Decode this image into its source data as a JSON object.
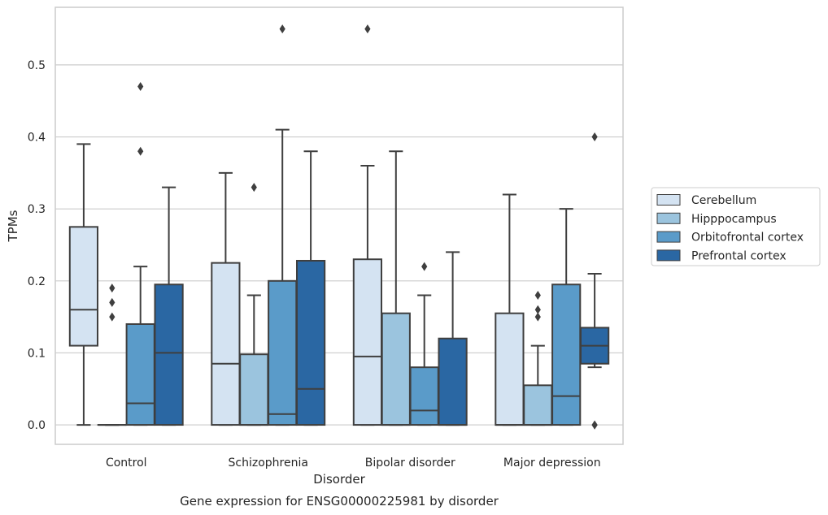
{
  "chart_data": {
    "type": "boxplot",
    "caption": "Gene expression for ENSG00000225981 by disorder",
    "xlabel": "Disorder",
    "ylabel": "TPMs",
    "ylim": [
      -0.027,
      0.58
    ],
    "yticks": [
      0.0,
      0.1,
      0.2,
      0.3,
      0.4,
      0.5
    ],
    "ytick_labels": [
      "0.0",
      "0.1",
      "0.2",
      "0.3",
      "0.4",
      "0.5"
    ],
    "grid": true,
    "legend_position": "right",
    "categories": [
      "Control",
      "Schizophrenia",
      "Bipolar disorder",
      "Major depression"
    ],
    "series": [
      {
        "name": "Cerebellum",
        "color": "#d4e3f2",
        "boxes": [
          {
            "whislo": 0.0,
            "q1": 0.11,
            "med": 0.16,
            "q3": 0.275,
            "whishi": 0.39,
            "fliers": []
          },
          {
            "whislo": 0.0,
            "q1": 0.0,
            "med": 0.085,
            "q3": 0.225,
            "whishi": 0.35,
            "fliers": []
          },
          {
            "whislo": 0.0,
            "q1": 0.0,
            "med": 0.095,
            "q3": 0.23,
            "whishi": 0.36,
            "fliers": [
              0.55
            ]
          },
          {
            "whislo": 0.0,
            "q1": 0.0,
            "med": 0.0,
            "q3": 0.155,
            "whishi": 0.32,
            "fliers": []
          }
        ]
      },
      {
        "name": "Hipppocampus",
        "color": "#9bc4de",
        "boxes": [
          {
            "whislo": 0.0,
            "q1": 0.0,
            "med": 0.0,
            "q3": 0.0,
            "whishi": 0.0,
            "fliers": [
              0.15,
              0.17,
              0.19
            ]
          },
          {
            "whislo": 0.0,
            "q1": 0.0,
            "med": 0.0,
            "q3": 0.098,
            "whishi": 0.18,
            "fliers": [
              0.33
            ]
          },
          {
            "whislo": 0.0,
            "q1": 0.0,
            "med": 0.0,
            "q3": 0.155,
            "whishi": 0.38,
            "fliers": []
          },
          {
            "whislo": 0.0,
            "q1": 0.0,
            "med": 0.0,
            "q3": 0.055,
            "whishi": 0.11,
            "fliers": [
              0.15,
              0.16,
              0.18
            ]
          }
        ]
      },
      {
        "name": "Orbitofrontal cortex",
        "color": "#5a9bc9",
        "boxes": [
          {
            "whislo": 0.0,
            "q1": 0.0,
            "med": 0.03,
            "q3": 0.14,
            "whishi": 0.22,
            "fliers": [
              0.38,
              0.47
            ]
          },
          {
            "whislo": 0.0,
            "q1": 0.0,
            "med": 0.015,
            "q3": 0.2,
            "whishi": 0.41,
            "fliers": [
              0.55
            ]
          },
          {
            "whislo": 0.0,
            "q1": 0.0,
            "med": 0.02,
            "q3": 0.08,
            "whishi": 0.18,
            "fliers": [
              0.22
            ]
          },
          {
            "whislo": 0.0,
            "q1": 0.0,
            "med": 0.04,
            "q3": 0.195,
            "whishi": 0.3,
            "fliers": []
          }
        ]
      },
      {
        "name": "Prefrontal cortex",
        "color": "#2a67a3",
        "boxes": [
          {
            "whislo": 0.0,
            "q1": 0.0,
            "med": 0.1,
            "q3": 0.195,
            "whishi": 0.33,
            "fliers": []
          },
          {
            "whislo": 0.0,
            "q1": 0.0,
            "med": 0.05,
            "q3": 0.228,
            "whishi": 0.38,
            "fliers": []
          },
          {
            "whislo": 0.0,
            "q1": 0.0,
            "med": 0.0,
            "q3": 0.12,
            "whishi": 0.24,
            "fliers": []
          },
          {
            "whislo": 0.08,
            "q1": 0.085,
            "med": 0.11,
            "q3": 0.135,
            "whishi": 0.21,
            "fliers": [
              0.0,
              0.0,
              0.4
            ]
          }
        ]
      }
    ]
  }
}
